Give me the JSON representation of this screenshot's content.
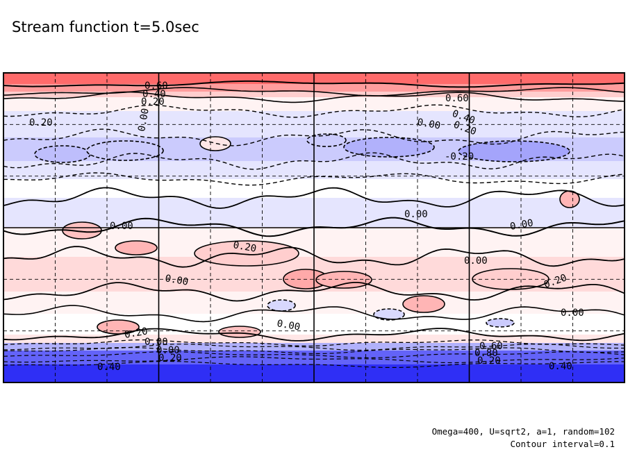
{
  "chart_data": {
    "type": "contour",
    "title": "Stream function t=5.0sec",
    "notes": [
      "Omega=400, U=sqrt2, a=1, random=102",
      "Contour interval=0.1"
    ],
    "contour_interval": 0.1,
    "value_range": [
      -0.8,
      0.6
    ],
    "color_scale": {
      "positive": "#ff3a3a",
      "zero": "#ffffff",
      "negative": "#2f2ff5"
    },
    "dashed_negative": true,
    "grid": true,
    "contour_labels": [
      "0.60",
      "0.40",
      "0.20",
      "0.20",
      "0.00",
      "0.60",
      "0.40",
      "0.20",
      "0.00",
      "-0.20",
      "0.00",
      "0.00",
      "0.20",
      "0.00",
      "0.00",
      "0.00",
      "0.20",
      "0.00",
      "0.00",
      "0.20",
      "0.00",
      "0.00",
      "0.20",
      "0.40",
      "0.60",
      "0.80",
      "0.20",
      "0.40",
      "0.60",
      "0.80"
    ],
    "bands": [
      {
        "level": 0.6
      },
      {
        "level": 0.4
      },
      {
        "level": 0.2
      },
      {
        "level": 0.05
      },
      {
        "level": -0.1
      },
      {
        "level": -0.2
      },
      {
        "level": -0.1
      },
      {
        "level": 0.0
      },
      {
        "level": -0.1
      },
      {
        "level": 0.05
      },
      {
        "level": 0.15
      },
      {
        "level": 0.05
      },
      {
        "level": 0.0
      },
      {
        "level": 0.1
      },
      {
        "level": -0.3
      },
      {
        "level": -0.6
      },
      {
        "level": -0.85
      }
    ]
  }
}
